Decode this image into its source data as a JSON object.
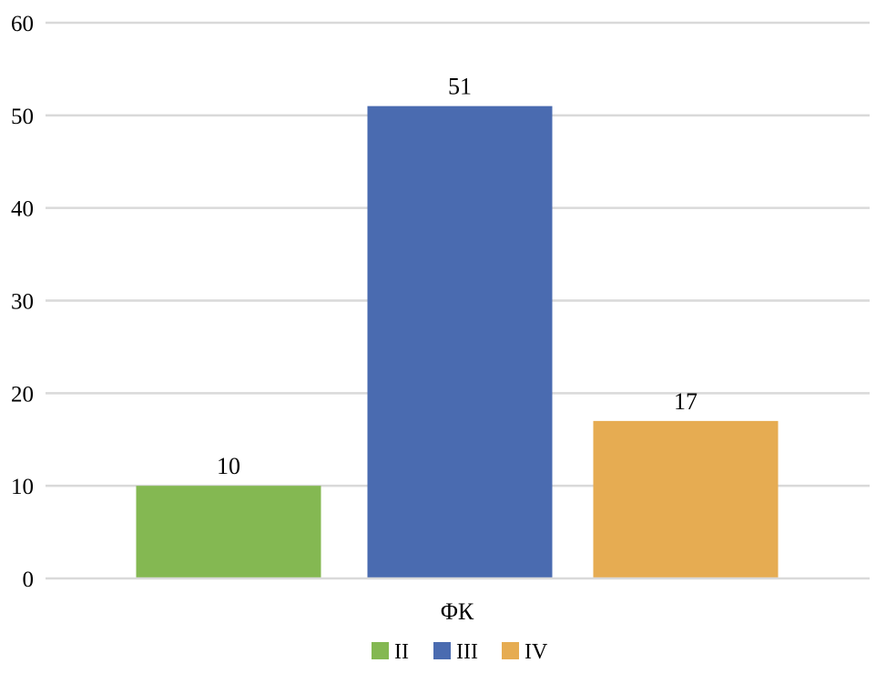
{
  "chart_data": {
    "type": "bar",
    "title": "",
    "xlabel": "",
    "ylabel": "",
    "categories": [
      "ΦК"
    ],
    "series": [
      {
        "name": "II",
        "values": [
          10
        ],
        "color": "#84B852"
      },
      {
        "name": "III",
        "values": [
          51
        ],
        "color": "#4A6BB0"
      },
      {
        "name": "IV",
        "values": [
          17
        ],
        "color": "#E6AC52"
      }
    ],
    "data_labels": [
      "10",
      "51",
      "17"
    ],
    "ylim": [
      0,
      60
    ],
    "y_ticks": [
      0,
      10,
      20,
      30,
      40,
      50,
      60
    ],
    "y_tick_labels": [
      "0",
      "10",
      "20",
      "30",
      "40",
      "50",
      "60"
    ],
    "grid": true,
    "legend_position": "bottom",
    "colors": {
      "grid": "#D9D9D9",
      "axis": "#D9D9D9",
      "text": "#000000"
    }
  }
}
